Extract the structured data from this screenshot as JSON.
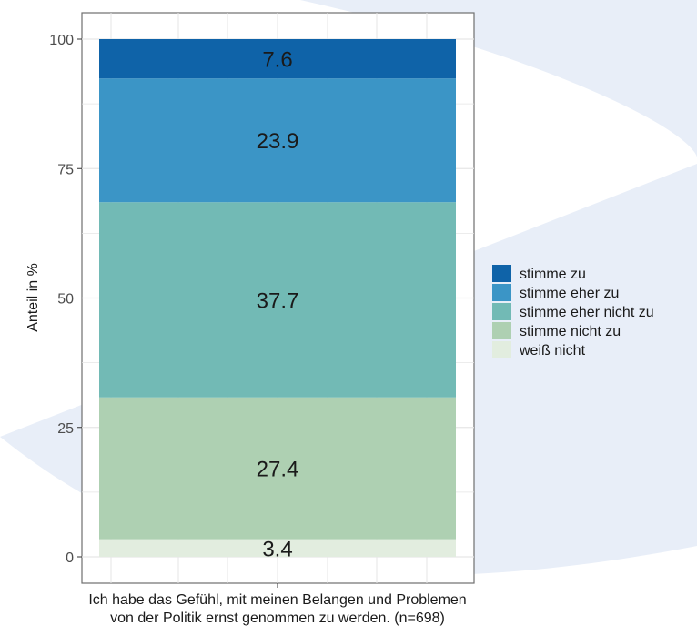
{
  "colors": {
    "background_shape": "#e8eef8",
    "panel_border": "#6f6f6f",
    "grid": "#e6e6e6"
  },
  "chart_data": {
    "type": "bar",
    "stacked": true,
    "categories": [
      "Ich habe das Gefühl, mit meinen Belangen und Problemen von der Politik ernst genommen zu werden. (n=698)"
    ],
    "category_label_lines": [
      "Ich habe das Gefühl, mit meinen Belangen und Problemen",
      "von der Politik ernst genommen zu werden. (n=698)"
    ],
    "series": [
      {
        "name": "weiß nicht",
        "values": [
          3.4
        ],
        "color": "#e2eddf"
      },
      {
        "name": "stimme nicht zu",
        "values": [
          27.4
        ],
        "color": "#aed0b2"
      },
      {
        "name": "stimme eher nicht zu",
        "values": [
          37.7
        ],
        "color": "#72bab5"
      },
      {
        "name": "stimme eher zu",
        "values": [
          23.9
        ],
        "color": "#3b95c6"
      },
      {
        "name": "stimme zu",
        "values": [
          7.6
        ],
        "color": "#0f63a8"
      }
    ],
    "legend_order": [
      "stimme zu",
      "stimme eher zu",
      "stimme eher nicht zu",
      "stimme nicht zu",
      "weiß nicht"
    ],
    "legend_position": "right",
    "ylabel": "Anteil in %",
    "xlabel": "",
    "ylim": [
      0,
      100
    ],
    "yticks": [
      0,
      25,
      50,
      75,
      100
    ],
    "grid": true
  }
}
